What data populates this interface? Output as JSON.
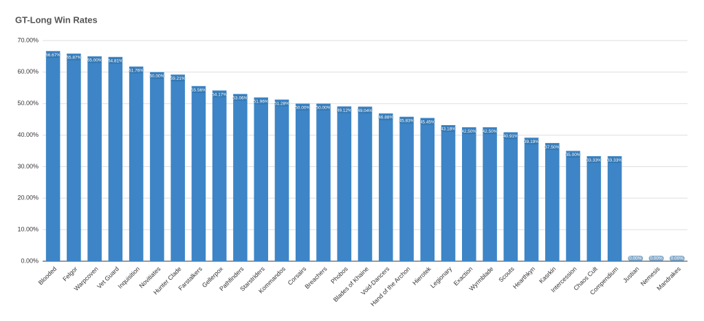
{
  "chart_data": {
    "type": "bar",
    "title": "GT-Long Win Rates",
    "categories": [
      "Blooded",
      "Felgor",
      "Warpcoven",
      "Vet Guard",
      "Inquisition",
      "Novitiates",
      "Hunter Clade",
      "Farstalkers",
      "Gellerpox",
      "Pathfinders",
      "Starstriders",
      "Kommandos",
      "Corsairs",
      "Breachers",
      "Phobos",
      "Blades of Khaine",
      "Void-Dancers",
      "Hand of the Archon",
      "Hierotek",
      "Legionary",
      "Exaction",
      "Wyrmblade",
      "Scouts",
      "Hearthkyn",
      "Kasrkin",
      "Intercession",
      "Chaos Cult",
      "Compendium",
      "Justian",
      "Nemesis",
      "Mandrakes"
    ],
    "values": [
      66.67,
      65.87,
      65.0,
      64.81,
      61.76,
      60.0,
      59.21,
      55.56,
      54.17,
      53.06,
      51.96,
      51.28,
      50.0,
      50.0,
      49.12,
      49.04,
      46.88,
      45.83,
      45.45,
      43.18,
      42.5,
      42.5,
      40.91,
      39.19,
      37.5,
      35.0,
      33.33,
      33.33,
      0,
      0,
      0
    ],
    "value_labels": [
      "66.67%",
      "65.87%",
      "65.00%",
      "64.81%",
      "61.76%",
      "60.00%",
      "59.21%",
      "55.56%",
      "54.17%",
      "53.06%",
      "51.96%",
      "51.28%",
      "50.00%",
      "50.00%",
      "49.12%",
      "49.04%",
      "46.88%",
      "45.83%",
      "45.45%",
      "43.18%",
      "42.50%",
      "42.50%",
      "40.91%",
      "39.19%",
      "37.50%",
      "35.00%",
      "33.33%",
      "33.33%",
      "0.00%",
      "0.00%",
      "0.00%"
    ],
    "color": "#3d85c6",
    "ylim": [
      0,
      70
    ],
    "yticks": [
      {
        "value": 0,
        "label": "0.00%"
      },
      {
        "value": 10,
        "label": "10.00%"
      },
      {
        "value": 20,
        "label": "20.00%"
      },
      {
        "value": 30,
        "label": "30.00%"
      },
      {
        "value": 40,
        "label": "40.00%"
      },
      {
        "value": 50,
        "label": "50.00%"
      },
      {
        "value": 60,
        "label": "60.00%"
      },
      {
        "value": 70,
        "label": "70.00%"
      }
    ],
    "grid": true
  }
}
